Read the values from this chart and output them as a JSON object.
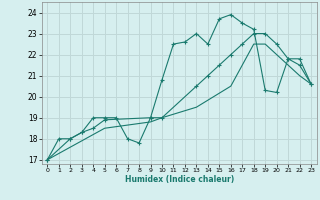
{
  "title": "",
  "xlabel": "Humidex (Indice chaleur)",
  "ylabel": "",
  "bg_color": "#d6efef",
  "grid_color": "#c0d8d8",
  "line_color": "#1a7a6e",
  "xlim": [
    -0.5,
    23.5
  ],
  "ylim": [
    16.8,
    24.5
  ],
  "yticks": [
    17,
    18,
    19,
    20,
    21,
    22,
    23,
    24
  ],
  "xticks": [
    0,
    1,
    2,
    3,
    4,
    5,
    6,
    7,
    8,
    9,
    10,
    11,
    12,
    13,
    14,
    15,
    16,
    17,
    18,
    19,
    20,
    21,
    22,
    23
  ],
  "line1_x": [
    0,
    1,
    2,
    3,
    4,
    5,
    6,
    7,
    8,
    9,
    10,
    11,
    12,
    13,
    14,
    15,
    16,
    17,
    18,
    19,
    20,
    21,
    22,
    23
  ],
  "line1_y": [
    17.0,
    18.0,
    18.0,
    18.3,
    19.0,
    19.0,
    19.0,
    18.0,
    17.8,
    19.0,
    20.8,
    22.5,
    22.6,
    23.0,
    22.5,
    23.7,
    23.9,
    23.5,
    23.2,
    20.3,
    20.2,
    21.8,
    21.8,
    20.6
  ],
  "line2_x": [
    0,
    2,
    3,
    4,
    5,
    9,
    10,
    13,
    14,
    15,
    16,
    17,
    18,
    19,
    20,
    21,
    22,
    23
  ],
  "line2_y": [
    17.0,
    18.0,
    18.3,
    18.5,
    18.9,
    19.0,
    19.0,
    20.5,
    21.0,
    21.5,
    22.0,
    22.5,
    23.0,
    23.0,
    22.5,
    21.8,
    21.5,
    20.6
  ],
  "line3_x": [
    0,
    5,
    9,
    10,
    13,
    16,
    17,
    18,
    19,
    20,
    21,
    22,
    23
  ],
  "line3_y": [
    17.0,
    18.5,
    18.8,
    19.0,
    19.5,
    20.5,
    21.5,
    22.5,
    22.5,
    22.0,
    21.5,
    21.0,
    20.6
  ]
}
